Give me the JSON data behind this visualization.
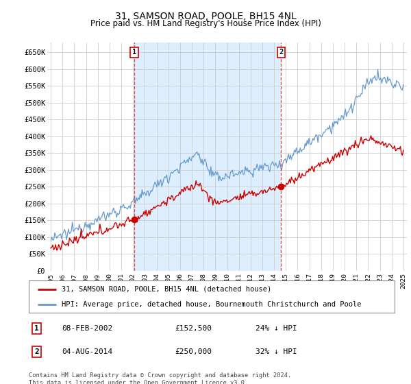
{
  "title": "31, SAMSON ROAD, POOLE, BH15 4NL",
  "subtitle": "Price paid vs. HM Land Registry's House Price Index (HPI)",
  "ylabel_ticks": [
    "£0",
    "£50K",
    "£100K",
    "£150K",
    "£200K",
    "£250K",
    "£300K",
    "£350K",
    "£400K",
    "£450K",
    "£500K",
    "£550K",
    "£600K",
    "£650K"
  ],
  "ytick_vals": [
    0,
    50000,
    100000,
    150000,
    200000,
    250000,
    300000,
    350000,
    400000,
    450000,
    500000,
    550000,
    600000,
    650000
  ],
  "x_start_year": 1995,
  "x_end_year": 2025,
  "legend_line1": "31, SAMSON ROAD, POOLE, BH15 4NL (detached house)",
  "legend_line2": "HPI: Average price, detached house, Bournemouth Christchurch and Poole",
  "annotation1_label": "1",
  "annotation1_date": "08-FEB-2002",
  "annotation1_price": "£152,500",
  "annotation1_pct": "24% ↓ HPI",
  "annotation2_label": "2",
  "annotation2_date": "04-AUG-2014",
  "annotation2_price": "£250,000",
  "annotation2_pct": "32% ↓ HPI",
  "footnote": "Contains HM Land Registry data © Crown copyright and database right 2024.\nThis data is licensed under the Open Government Licence v3.0.",
  "line_color_red": "#cc0000",
  "line_color_blue": "#6699cc",
  "shade_color": "#ddeeff",
  "background_color": "#ffffff",
  "grid_color": "#cccccc",
  "annotation_box_color": "#cc0000",
  "sale1_year": 2002.1,
  "sale1_price": 152500,
  "sale2_year": 2014.6,
  "sale2_price": 250000
}
